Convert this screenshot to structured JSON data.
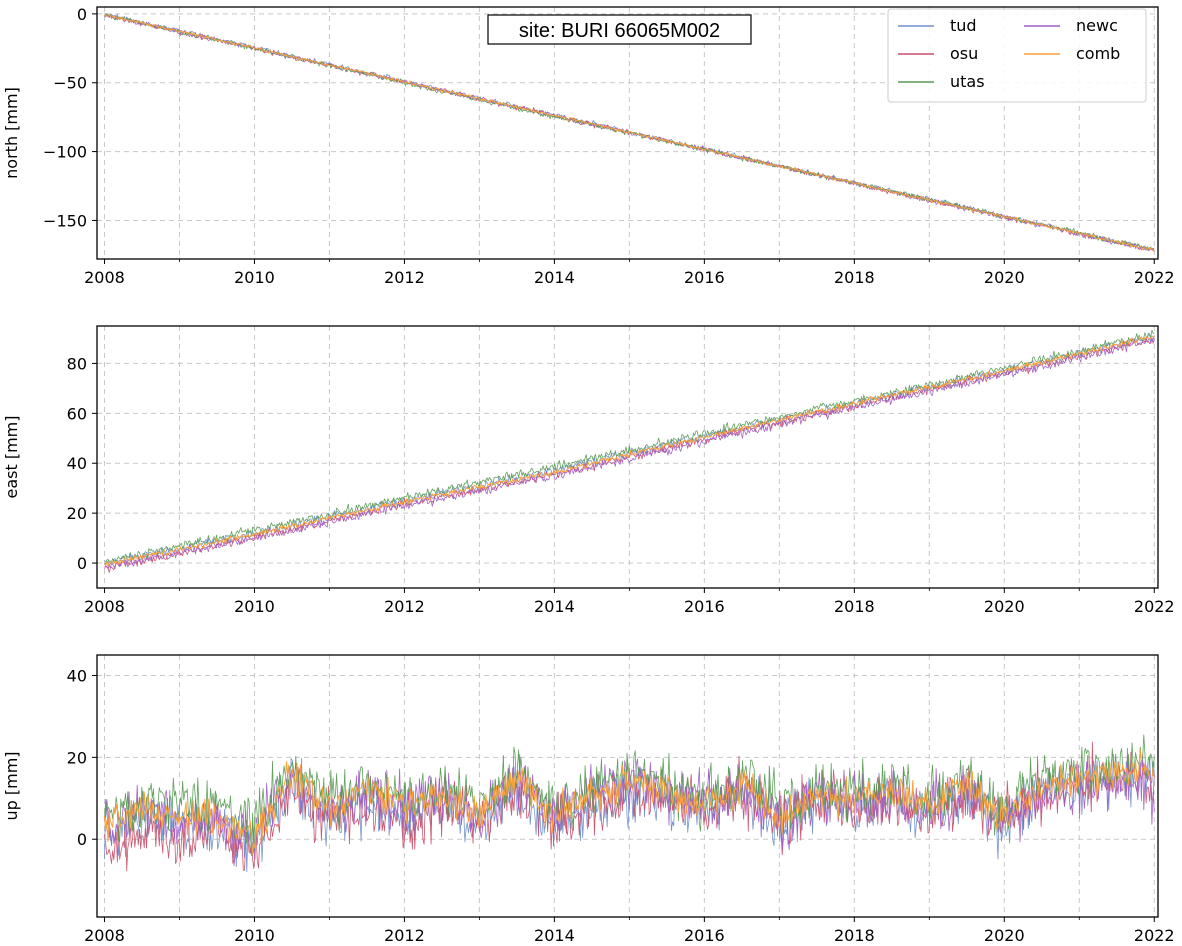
{
  "chart_data": [
    {
      "type": "line",
      "panel": "north",
      "ylabel": "north [mm]",
      "annotation": "site: BURI 66065M002",
      "xlim": [
        2007.9,
        2022.05
      ],
      "ylim": [
        -178,
        5
      ],
      "xticks": [
        2008,
        2010,
        2012,
        2014,
        2016,
        2018,
        2020,
        2022
      ],
      "xticks_minor": [
        2009,
        2011,
        2013,
        2015,
        2017,
        2019,
        2021
      ],
      "yticks": [
        0,
        -50,
        -100,
        -150
      ],
      "ytick_labels": [
        "0",
        "−50",
        "−100",
        "−150"
      ],
      "grid": true,
      "legend": {
        "placement": "top-right",
        "columns": 2,
        "entries": [
          "tud",
          "osu",
          "utas",
          "newc",
          "comb"
        ]
      },
      "x": [
        2008,
        2010,
        2012,
        2014,
        2016,
        2018,
        2020,
        2022
      ],
      "series": [
        {
          "name": "tud",
          "values": [
            0,
            -24.5,
            -49,
            -73.5,
            -98,
            -122.5,
            -147,
            -171.5
          ]
        },
        {
          "name": "osu",
          "values": [
            -1,
            -25,
            -49.5,
            -74,
            -98.5,
            -123,
            -147.5,
            -172
          ]
        },
        {
          "name": "utas",
          "values": [
            -0.5,
            -25,
            -50,
            -74.5,
            -98.5,
            -122.5,
            -147,
            -171
          ]
        },
        {
          "name": "newc",
          "values": [
            -1,
            -25,
            -49.5,
            -74,
            -98.5,
            -123,
            -147.5,
            -172
          ]
        },
        {
          "name": "comb",
          "values": [
            -0.5,
            -24.8,
            -49.3,
            -73.8,
            -98.3,
            -122.8,
            -147.3,
            -171.5
          ]
        }
      ]
    },
    {
      "type": "line",
      "panel": "east",
      "ylabel": "east [mm]",
      "xlim": [
        2007.9,
        2022.05
      ],
      "ylim": [
        -10,
        95
      ],
      "xticks": [
        2008,
        2010,
        2012,
        2014,
        2016,
        2018,
        2020,
        2022
      ],
      "xticks_minor": [
        2009,
        2011,
        2013,
        2015,
        2017,
        2019,
        2021
      ],
      "yticks": [
        0,
        20,
        40,
        60,
        80
      ],
      "ytick_labels": [
        "0",
        "20",
        "40",
        "60",
        "80"
      ],
      "grid": true,
      "x": [
        2008,
        2010,
        2012,
        2014,
        2016,
        2018,
        2020,
        2022
      ],
      "series": [
        {
          "name": "tud",
          "values": [
            0,
            12,
            25,
            37,
            51,
            64,
            77,
            91
          ]
        },
        {
          "name": "osu",
          "values": [
            -2,
            10.5,
            23.5,
            35.5,
            49.5,
            63,
            76,
            90
          ]
        },
        {
          "name": "utas",
          "values": [
            0.5,
            13,
            26,
            38.5,
            52,
            65,
            78,
            92
          ]
        },
        {
          "name": "newc",
          "values": [
            -2,
            10,
            23,
            35,
            49,
            62.5,
            75.5,
            89.5
          ]
        },
        {
          "name": "comb",
          "values": [
            -0.5,
            11.5,
            24.5,
            36.5,
            50.5,
            64,
            77,
            91
          ]
        }
      ]
    },
    {
      "type": "line",
      "panel": "up",
      "ylabel": "up [mm]",
      "xlim": [
        2007.9,
        2022.05
      ],
      "ylim": [
        -19,
        45
      ],
      "xticks": [
        2008,
        2010,
        2012,
        2014,
        2016,
        2018,
        2020,
        2022
      ],
      "xticks_minor": [
        2009,
        2011,
        2013,
        2015,
        2017,
        2019,
        2021
      ],
      "yticks": [
        0,
        20,
        40
      ],
      "ytick_labels": [
        "0",
        "20",
        "40"
      ],
      "grid": true,
      "x": [
        2008,
        2008.5,
        2009,
        2009.5,
        2010,
        2010.5,
        2011,
        2011.5,
        2012,
        2012.5,
        2013,
        2013.5,
        2014,
        2014.5,
        2015,
        2015.5,
        2016,
        2016.5,
        2017,
        2017.5,
        2018,
        2018.5,
        2019,
        2019.5,
        2020,
        2020.5,
        2021,
        2021.5,
        2022
      ],
      "series": [
        {
          "name": "tud",
          "values": [
            1,
            3,
            4,
            2,
            -2,
            14,
            5,
            8,
            6,
            7,
            4,
            11,
            2,
            8,
            10,
            10,
            6,
            12,
            3,
            9,
            8,
            10,
            5,
            11,
            3,
            12,
            13,
            15,
            14
          ]
        },
        {
          "name": "osu",
          "values": [
            -4,
            2,
            0,
            3,
            -4,
            12,
            4,
            9,
            4,
            8,
            5,
            12,
            4,
            9,
            11,
            11,
            7,
            12,
            4,
            10,
            8,
            10,
            6,
            11,
            5,
            12,
            13,
            15,
            14
          ]
        },
        {
          "name": "utas",
          "values": [
            5,
            10,
            9,
            8,
            4,
            18,
            10,
            14,
            11,
            12,
            9,
            17,
            8,
            12,
            16,
            13,
            10,
            15,
            8,
            13,
            12,
            14,
            10,
            14,
            8,
            15,
            17,
            18,
            19
          ]
        },
        {
          "name": "newc",
          "values": [
            2,
            6,
            5,
            4,
            0,
            15,
            7,
            11,
            8,
            10,
            6,
            14,
            6,
            13,
            14,
            12,
            8,
            13,
            5,
            10,
            9,
            11,
            7,
            12,
            4,
            12,
            13,
            14,
            12
          ]
        },
        {
          "name": "comb",
          "values": [
            3,
            7,
            6,
            5,
            0,
            16,
            8,
            12,
            9,
            10,
            7,
            15,
            6,
            11,
            14,
            12,
            8,
            13,
            5,
            11,
            10,
            12,
            8,
            13,
            5,
            13,
            15,
            16,
            17
          ]
        }
      ]
    }
  ],
  "series_colors": {
    "tud": "#6f8fca",
    "osu": "#c94f69",
    "utas": "#5a9c55",
    "newc": "#a05ec5",
    "comb": "#f7a13c"
  },
  "noise_amplitude": {
    "north": 0.9,
    "east": 0.9,
    "up": 3.4
  }
}
